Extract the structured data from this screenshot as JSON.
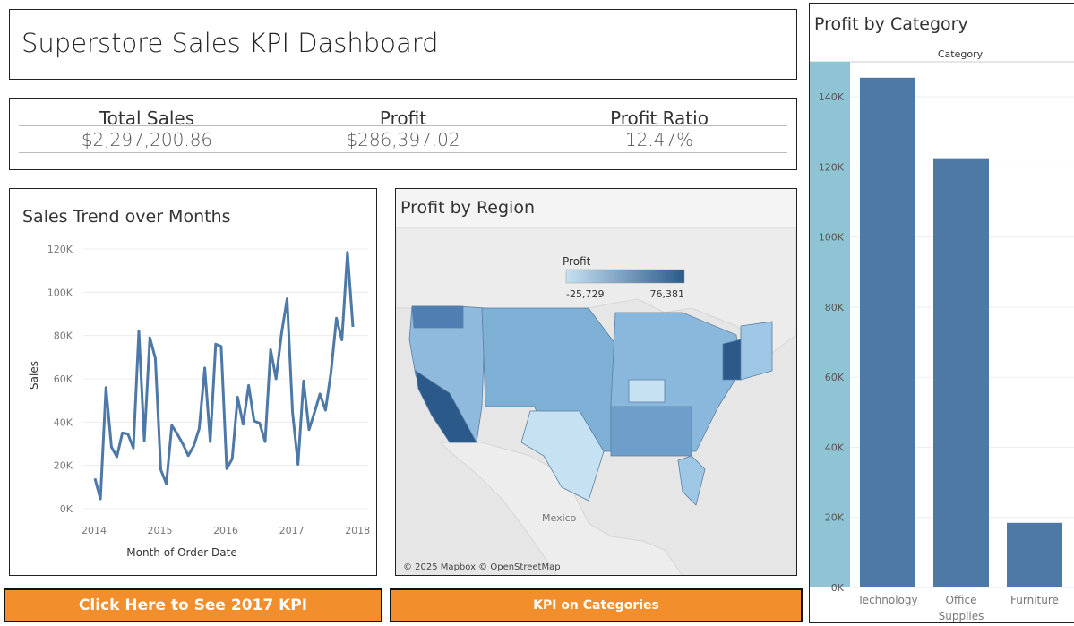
{
  "dashboard": {
    "title": "Superstore Sales KPI Dashboard"
  },
  "kpis": {
    "total_sales": {
      "label": "Total Sales",
      "value": "$2,297,200.86"
    },
    "profit": {
      "label": "Profit",
      "value": "$286,397.02"
    },
    "profit_ratio": {
      "label": "Profit Ratio",
      "value": "12.47%"
    }
  },
  "trend": {
    "title": "Sales Trend over Months",
    "xlabel": "Month of Order Date",
    "ylabel": "Sales",
    "yticks": [
      "0K",
      "20K",
      "40K",
      "60K",
      "80K",
      "100K",
      "120K"
    ],
    "xticks": [
      "2014",
      "2015",
      "2016",
      "2017",
      "2018"
    ]
  },
  "map": {
    "title": "Profit by Region",
    "legend_title": "Profit",
    "legend_min": "-25,729",
    "legend_max": "76,381",
    "country_label": "Mexico",
    "attribution": "© 2025 Mapbox © OpenStreetMap",
    "colors": {
      "low": "#c6e1f2",
      "high": "#2b5a8a"
    }
  },
  "category": {
    "title": "Profit by Category",
    "header": "Category",
    "yticks": [
      "0K",
      "20K",
      "40K",
      "60K",
      "80K",
      "100K",
      "120K",
      "140K"
    ],
    "bar_color": "#4e79a7",
    "band_color": "#8fc4d5"
  },
  "buttons": {
    "kpi_2017": "Click Here to See 2017 KPI",
    "kpi_categories": "KPI on Categories",
    "color": "#f28e2b"
  },
  "chart_data": [
    {
      "type": "line",
      "title": "Sales Trend over Months",
      "xlabel": "Month of Order Date",
      "ylabel": "Sales",
      "ylim": [
        0,
        120000
      ],
      "x": [
        "2014-01",
        "2014-02",
        "2014-03",
        "2014-04",
        "2014-05",
        "2014-06",
        "2014-07",
        "2014-08",
        "2014-09",
        "2014-10",
        "2014-11",
        "2014-12",
        "2015-01",
        "2015-02",
        "2015-03",
        "2015-04",
        "2015-05",
        "2015-06",
        "2015-07",
        "2015-08",
        "2015-09",
        "2015-10",
        "2015-11",
        "2015-12",
        "2016-01",
        "2016-02",
        "2016-03",
        "2016-04",
        "2016-05",
        "2016-06",
        "2016-07",
        "2016-08",
        "2016-09",
        "2016-10",
        "2016-11",
        "2016-12",
        "2017-01",
        "2017-02",
        "2017-03",
        "2017-04",
        "2017-05",
        "2017-06",
        "2017-07",
        "2017-08",
        "2017-09",
        "2017-10",
        "2017-11",
        "2017-12"
      ],
      "series": [
        {
          "values": [
            14000,
            4500,
            56000,
            28500,
            24000,
            35000,
            34500,
            28000,
            82000,
            31500,
            79000,
            69500,
            18000,
            11500,
            38500,
            34500,
            30000,
            24500,
            29000,
            37000,
            65000,
            31000,
            76000,
            75000,
            18500,
            23000,
            51500,
            39000,
            57000,
            40500,
            39500,
            31000,
            73500,
            60000,
            81000,
            97000,
            44500,
            20500,
            59000,
            36500,
            44500,
            53000,
            45500,
            63000,
            88000,
            78000,
            118500,
            84000
          ]
        }
      ]
    },
    {
      "type": "bar",
      "title": "Profit by Category",
      "xlabel": "Category",
      "categories": [
        "Technology",
        "Office Supplies",
        "Furniture"
      ],
      "values": [
        145455,
        122491,
        18451
      ],
      "ylim": [
        0,
        150000
      ]
    }
  ]
}
